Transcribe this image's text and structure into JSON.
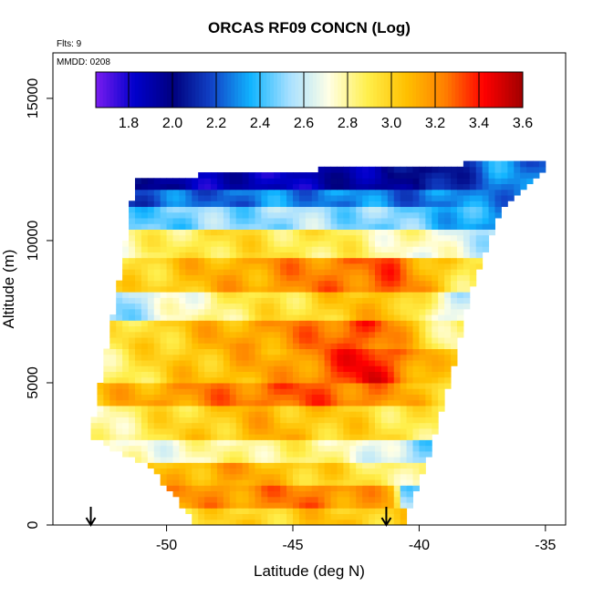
{
  "chart_data": {
    "type": "heatmap",
    "title": "ORCAS RF09 CONCN (Log)",
    "annotations": [
      "Flts: 9",
      "MMDD: 0208"
    ],
    "xlabel": "Latitude (deg N)",
    "ylabel": "Altitude (m)",
    "xlim": [
      -54.5,
      -34.2
    ],
    "ylim": [
      0,
      16600
    ],
    "x_ticks": [
      -50,
      -45,
      -40,
      -35
    ],
    "y_ticks": [
      0,
      5000,
      10000,
      15000
    ],
    "colorbar": {
      "range": [
        1.65,
        3.6
      ],
      "ticks": [
        1.8,
        2.0,
        2.2,
        2.4,
        2.6,
        2.8,
        3.0,
        3.2,
        3.4,
        3.6
      ],
      "tick_labels": [
        "1.8",
        "2.0",
        "2.2",
        "2.4",
        "2.6",
        "2.8",
        "3.0",
        "3.2",
        "3.4",
        "3.6"
      ],
      "colors": [
        "#7a1cf0",
        "#0000cc",
        "#00007e",
        "#1144c8",
        "#11b4ff",
        "#a8e0ff",
        "#ffffe6",
        "#ffef4c",
        "#ffc000",
        "#ff7f00",
        "#ff0000",
        "#a00000"
      ]
    },
    "domain_envelope": {
      "left_x_at_y": [
        [
          -48.8,
          0
        ],
        [
          -50.6,
          2000
        ],
        [
          -53.0,
          3100
        ],
        [
          -52.6,
          5200
        ],
        [
          -52.0,
          8000
        ],
        [
          -51.6,
          10200
        ],
        [
          -51.2,
          12200
        ]
      ],
      "right_x_at_y": [
        [
          -40.6,
          0
        ],
        [
          -39.6,
          2500
        ],
        [
          -38.8,
          5000
        ],
        [
          -38.0,
          8000
        ],
        [
          -36.8,
          11000
        ],
        [
          -35.0,
          12600
        ]
      ],
      "top_y_at_x": [
        [
          -51.2,
          12200
        ],
        [
          -44.0,
          12500
        ],
        [
          -38.4,
          12500
        ],
        [
          -38.2,
          12700
        ],
        [
          -35.0,
          12700
        ]
      ]
    },
    "bands": [
      {
        "y": [
          0,
          700
        ],
        "values": [
          [
            -49.0,
            2.95
          ],
          [
            -46.0,
            3.0
          ],
          [
            -43.0,
            3.05
          ],
          [
            -41.0,
            3.0
          ]
        ]
      },
      {
        "y": [
          700,
          1500
        ],
        "values": [
          [
            -50.0,
            3.15
          ],
          [
            -47.0,
            3.2
          ],
          [
            -44.0,
            3.25
          ],
          [
            -41.0,
            3.1
          ],
          [
            -40.6,
            2.5
          ]
        ]
      },
      {
        "y": [
          1500,
          2200
        ],
        "values": [
          [
            -51.0,
            3.0
          ],
          [
            -48.0,
            3.15
          ],
          [
            -45.0,
            3.05
          ],
          [
            -42.0,
            2.9
          ],
          [
            -39.8,
            2.8
          ]
        ]
      },
      {
        "y": [
          2200,
          3100
        ],
        "values": [
          [
            -52.5,
            2.7
          ],
          [
            -49.0,
            2.75
          ],
          [
            -46.0,
            2.85
          ],
          [
            -43.0,
            2.8
          ],
          [
            -40.0,
            2.5
          ]
        ]
      },
      {
        "y": [
          3100,
          4300
        ],
        "values": [
          [
            -53.0,
            2.75
          ],
          [
            -50.0,
            2.95
          ],
          [
            -46.0,
            3.1
          ],
          [
            -43.0,
            3.0
          ],
          [
            -40.0,
            2.9
          ]
        ]
      },
      {
        "y": [
          4300,
          5100
        ],
        "values": [
          [
            -52.8,
            3.05
          ],
          [
            -49.0,
            3.2
          ],
          [
            -45.0,
            3.3
          ],
          [
            -42.0,
            3.25
          ],
          [
            -39.5,
            3.0
          ]
        ]
      },
      {
        "y": [
          5100,
          6200
        ],
        "values": [
          [
            -52.5,
            2.85
          ],
          [
            -49.0,
            3.05
          ],
          [
            -45.0,
            3.15
          ],
          [
            -42.0,
            3.45
          ],
          [
            -39.0,
            3.0
          ]
        ]
      },
      {
        "y": [
          6200,
          7200
        ],
        "values": [
          [
            -52.3,
            2.9
          ],
          [
            -48.0,
            3.1
          ],
          [
            -45.0,
            3.2
          ],
          [
            -42.0,
            3.35
          ],
          [
            -38.8,
            2.8
          ]
        ]
      },
      {
        "y": [
          7200,
          8200
        ],
        "values": [
          [
            -52.0,
            2.5
          ],
          [
            -48.0,
            2.85
          ],
          [
            -45.0,
            2.95
          ],
          [
            -41.0,
            3.1
          ],
          [
            -38.5,
            2.6
          ]
        ]
      },
      {
        "y": [
          8200,
          9400
        ],
        "values": [
          [
            -51.8,
            2.95
          ],
          [
            -48.0,
            3.1
          ],
          [
            -45.0,
            3.2
          ],
          [
            -41.0,
            3.3
          ],
          [
            -38.2,
            2.9
          ]
        ]
      },
      {
        "y": [
          9400,
          10400
        ],
        "values": [
          [
            -51.6,
            2.8
          ],
          [
            -48.0,
            2.95
          ],
          [
            -44.0,
            2.9
          ],
          [
            -40.0,
            2.75
          ],
          [
            -37.5,
            2.6
          ]
        ]
      },
      {
        "y": [
          10400,
          11200
        ],
        "values": [
          [
            -51.4,
            2.45
          ],
          [
            -48.0,
            2.5
          ],
          [
            -44.0,
            2.55
          ],
          [
            -40.0,
            2.45
          ],
          [
            -37.0,
            2.3
          ]
        ]
      },
      {
        "y": [
          11200,
          11900
        ],
        "values": [
          [
            -51.3,
            2.2
          ],
          [
            -48.0,
            2.25
          ],
          [
            -44.0,
            2.3
          ],
          [
            -40.0,
            2.25
          ],
          [
            -36.5,
            2.3
          ]
        ]
      },
      {
        "y": [
          11900,
          12700
        ],
        "values": [
          [
            -51.2,
            1.95
          ],
          [
            -47.0,
            1.85
          ],
          [
            -43.0,
            1.9
          ],
          [
            -39.0,
            2.05
          ],
          [
            -37.0,
            2.3
          ],
          [
            -35.0,
            2.25
          ]
        ]
      }
    ],
    "arrow_markers_x": [
      -53.0,
      -41.3
    ]
  }
}
